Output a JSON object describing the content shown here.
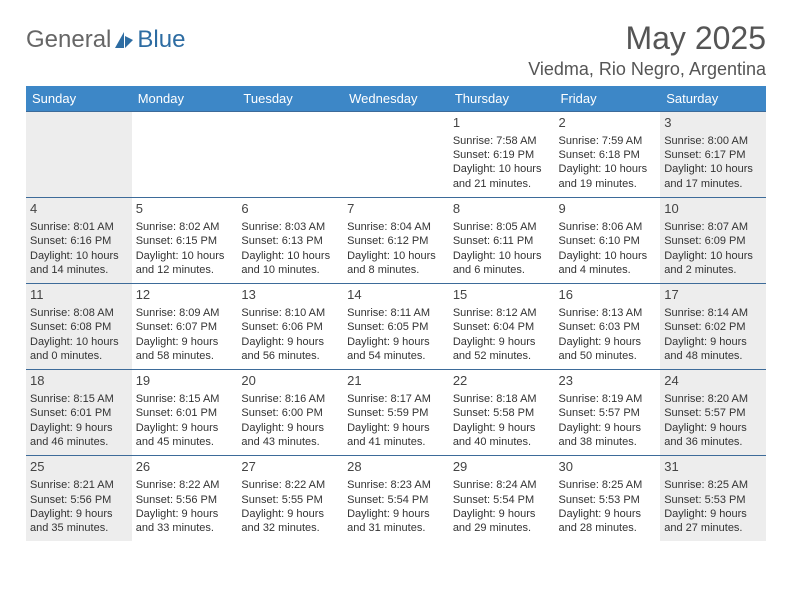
{
  "brand": {
    "general": "General",
    "blue": "Blue"
  },
  "header": {
    "title": "May 2025",
    "location": "Viedma, Rio Negro, Argentina"
  },
  "styling": {
    "header_bg": "#3d87c7",
    "header_text": "#ffffff",
    "row_border": "#3d6b99",
    "weekend_bg": "#ededed",
    "body_text": "#333333",
    "title_color": "#555555",
    "font_family": "Arial",
    "day_fontsize": 13,
    "cell_fontsize": 11,
    "title_fontsize": 32,
    "location_fontsize": 18
  },
  "daynames": [
    "Sunday",
    "Monday",
    "Tuesday",
    "Wednesday",
    "Thursday",
    "Friday",
    "Saturday"
  ],
  "weeks": [
    [
      null,
      null,
      null,
      null,
      {
        "n": "1",
        "sr": "Sunrise: 7:58 AM",
        "ss": "Sunset: 6:19 PM",
        "d1": "Daylight: 10 hours",
        "d2": "and 21 minutes."
      },
      {
        "n": "2",
        "sr": "Sunrise: 7:59 AM",
        "ss": "Sunset: 6:18 PM",
        "d1": "Daylight: 10 hours",
        "d2": "and 19 minutes."
      },
      {
        "n": "3",
        "sr": "Sunrise: 8:00 AM",
        "ss": "Sunset: 6:17 PM",
        "d1": "Daylight: 10 hours",
        "d2": "and 17 minutes."
      }
    ],
    [
      {
        "n": "4",
        "sr": "Sunrise: 8:01 AM",
        "ss": "Sunset: 6:16 PM",
        "d1": "Daylight: 10 hours",
        "d2": "and 14 minutes."
      },
      {
        "n": "5",
        "sr": "Sunrise: 8:02 AM",
        "ss": "Sunset: 6:15 PM",
        "d1": "Daylight: 10 hours",
        "d2": "and 12 minutes."
      },
      {
        "n": "6",
        "sr": "Sunrise: 8:03 AM",
        "ss": "Sunset: 6:13 PM",
        "d1": "Daylight: 10 hours",
        "d2": "and 10 minutes."
      },
      {
        "n": "7",
        "sr": "Sunrise: 8:04 AM",
        "ss": "Sunset: 6:12 PM",
        "d1": "Daylight: 10 hours",
        "d2": "and 8 minutes."
      },
      {
        "n": "8",
        "sr": "Sunrise: 8:05 AM",
        "ss": "Sunset: 6:11 PM",
        "d1": "Daylight: 10 hours",
        "d2": "and 6 minutes."
      },
      {
        "n": "9",
        "sr": "Sunrise: 8:06 AM",
        "ss": "Sunset: 6:10 PM",
        "d1": "Daylight: 10 hours",
        "d2": "and 4 minutes."
      },
      {
        "n": "10",
        "sr": "Sunrise: 8:07 AM",
        "ss": "Sunset: 6:09 PM",
        "d1": "Daylight: 10 hours",
        "d2": "and 2 minutes."
      }
    ],
    [
      {
        "n": "11",
        "sr": "Sunrise: 8:08 AM",
        "ss": "Sunset: 6:08 PM",
        "d1": "Daylight: 10 hours",
        "d2": "and 0 minutes."
      },
      {
        "n": "12",
        "sr": "Sunrise: 8:09 AM",
        "ss": "Sunset: 6:07 PM",
        "d1": "Daylight: 9 hours",
        "d2": "and 58 minutes."
      },
      {
        "n": "13",
        "sr": "Sunrise: 8:10 AM",
        "ss": "Sunset: 6:06 PM",
        "d1": "Daylight: 9 hours",
        "d2": "and 56 minutes."
      },
      {
        "n": "14",
        "sr": "Sunrise: 8:11 AM",
        "ss": "Sunset: 6:05 PM",
        "d1": "Daylight: 9 hours",
        "d2": "and 54 minutes."
      },
      {
        "n": "15",
        "sr": "Sunrise: 8:12 AM",
        "ss": "Sunset: 6:04 PM",
        "d1": "Daylight: 9 hours",
        "d2": "and 52 minutes."
      },
      {
        "n": "16",
        "sr": "Sunrise: 8:13 AM",
        "ss": "Sunset: 6:03 PM",
        "d1": "Daylight: 9 hours",
        "d2": "and 50 minutes."
      },
      {
        "n": "17",
        "sr": "Sunrise: 8:14 AM",
        "ss": "Sunset: 6:02 PM",
        "d1": "Daylight: 9 hours",
        "d2": "and 48 minutes."
      }
    ],
    [
      {
        "n": "18",
        "sr": "Sunrise: 8:15 AM",
        "ss": "Sunset: 6:01 PM",
        "d1": "Daylight: 9 hours",
        "d2": "and 46 minutes."
      },
      {
        "n": "19",
        "sr": "Sunrise: 8:15 AM",
        "ss": "Sunset: 6:01 PM",
        "d1": "Daylight: 9 hours",
        "d2": "and 45 minutes."
      },
      {
        "n": "20",
        "sr": "Sunrise: 8:16 AM",
        "ss": "Sunset: 6:00 PM",
        "d1": "Daylight: 9 hours",
        "d2": "and 43 minutes."
      },
      {
        "n": "21",
        "sr": "Sunrise: 8:17 AM",
        "ss": "Sunset: 5:59 PM",
        "d1": "Daylight: 9 hours",
        "d2": "and 41 minutes."
      },
      {
        "n": "22",
        "sr": "Sunrise: 8:18 AM",
        "ss": "Sunset: 5:58 PM",
        "d1": "Daylight: 9 hours",
        "d2": "and 40 minutes."
      },
      {
        "n": "23",
        "sr": "Sunrise: 8:19 AM",
        "ss": "Sunset: 5:57 PM",
        "d1": "Daylight: 9 hours",
        "d2": "and 38 minutes."
      },
      {
        "n": "24",
        "sr": "Sunrise: 8:20 AM",
        "ss": "Sunset: 5:57 PM",
        "d1": "Daylight: 9 hours",
        "d2": "and 36 minutes."
      }
    ],
    [
      {
        "n": "25",
        "sr": "Sunrise: 8:21 AM",
        "ss": "Sunset: 5:56 PM",
        "d1": "Daylight: 9 hours",
        "d2": "and 35 minutes."
      },
      {
        "n": "26",
        "sr": "Sunrise: 8:22 AM",
        "ss": "Sunset: 5:56 PM",
        "d1": "Daylight: 9 hours",
        "d2": "and 33 minutes."
      },
      {
        "n": "27",
        "sr": "Sunrise: 8:22 AM",
        "ss": "Sunset: 5:55 PM",
        "d1": "Daylight: 9 hours",
        "d2": "and 32 minutes."
      },
      {
        "n": "28",
        "sr": "Sunrise: 8:23 AM",
        "ss": "Sunset: 5:54 PM",
        "d1": "Daylight: 9 hours",
        "d2": "and 31 minutes."
      },
      {
        "n": "29",
        "sr": "Sunrise: 8:24 AM",
        "ss": "Sunset: 5:54 PM",
        "d1": "Daylight: 9 hours",
        "d2": "and 29 minutes."
      },
      {
        "n": "30",
        "sr": "Sunrise: 8:25 AM",
        "ss": "Sunset: 5:53 PM",
        "d1": "Daylight: 9 hours",
        "d2": "and 28 minutes."
      },
      {
        "n": "31",
        "sr": "Sunrise: 8:25 AM",
        "ss": "Sunset: 5:53 PM",
        "d1": "Daylight: 9 hours",
        "d2": "and 27 minutes."
      }
    ]
  ]
}
